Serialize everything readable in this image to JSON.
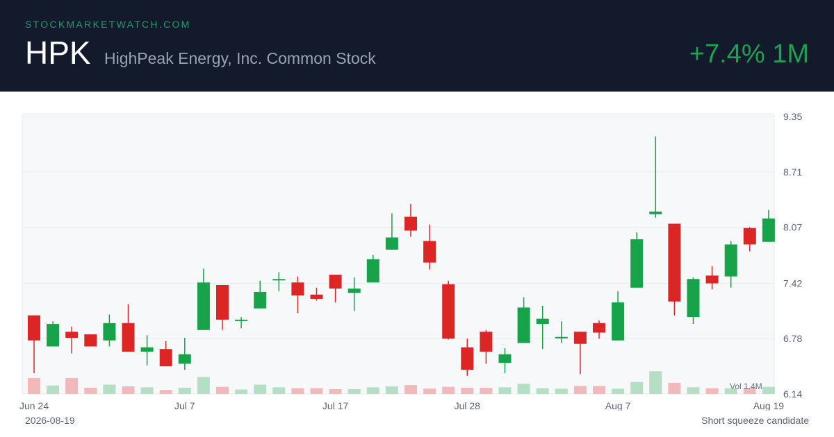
{
  "header": {
    "site": "STOCKMARKETWATCH.COM",
    "ticker": "HPK",
    "company": "HighPeak Energy, Inc. Common Stock",
    "change": "+7.4% 1M"
  },
  "footer": {
    "date": "2026-08-19",
    "note": "Short squeeze candidate"
  },
  "colors": {
    "header_bg": "#131a2b",
    "up": "#16a34a",
    "down": "#dc2626",
    "vol_up": "#b4dfc5",
    "vol_down": "#f1b9b9",
    "change": "#1ea24f"
  },
  "chart_data": {
    "type": "candlestick",
    "y_ticks": [
      "9.35",
      "8.71",
      "8.07",
      "7.42",
      "6.78",
      "6.14"
    ],
    "ylim": [
      6.14,
      9.35
    ],
    "x_tick_labels": [
      {
        "label": "Jun 24",
        "index": 0
      },
      {
        "label": "Jul 7",
        "index": 8
      },
      {
        "label": "Jul 17",
        "index": 16
      },
      {
        "label": "Jul 28",
        "index": 23
      },
      {
        "label": "Aug 7",
        "index": 31
      },
      {
        "label": "Aug 19",
        "index": 39
      }
    ],
    "volume_label": "Vol 1.4M",
    "volume_max": 1.4,
    "candles": [
      {
        "o": 7.05,
        "h": 7.05,
        "l": 6.38,
        "c": 6.76,
        "v": 0.36
      },
      {
        "o": 6.69,
        "h": 6.98,
        "l": 6.69,
        "c": 6.95,
        "v": 0.19
      },
      {
        "o": 6.86,
        "h": 6.92,
        "l": 6.61,
        "c": 6.79,
        "v": 0.36
      },
      {
        "o": 6.83,
        "h": 6.83,
        "l": 6.69,
        "c": 6.69,
        "v": 0.14
      },
      {
        "o": 6.76,
        "h": 7.06,
        "l": 6.69,
        "c": 6.96,
        "v": 0.21
      },
      {
        "o": 6.96,
        "h": 7.18,
        "l": 6.63,
        "c": 6.63,
        "v": 0.17
      },
      {
        "o": 6.63,
        "h": 6.82,
        "l": 6.47,
        "c": 6.68,
        "v": 0.15
      },
      {
        "o": 6.66,
        "h": 6.75,
        "l": 6.46,
        "c": 6.46,
        "v": 0.09
      },
      {
        "o": 6.49,
        "h": 6.79,
        "l": 6.42,
        "c": 6.6,
        "v": 0.14
      },
      {
        "o": 6.88,
        "h": 7.59,
        "l": 6.88,
        "c": 7.43,
        "v": 0.38
      },
      {
        "o": 7.4,
        "h": 7.4,
        "l": 6.88,
        "c": 7.0,
        "v": 0.16
      },
      {
        "o": 7.0,
        "h": 7.03,
        "l": 6.9,
        "c": 7.0,
        "v": 0.1
      },
      {
        "o": 7.13,
        "h": 7.45,
        "l": 7.13,
        "c": 7.32,
        "v": 0.21
      },
      {
        "o": 7.47,
        "h": 7.55,
        "l": 7.33,
        "c": 7.47,
        "v": 0.15
      },
      {
        "o": 7.43,
        "h": 7.5,
        "l": 7.08,
        "c": 7.28,
        "v": 0.13
      },
      {
        "o": 7.29,
        "h": 7.37,
        "l": 7.22,
        "c": 7.24,
        "v": 0.13
      },
      {
        "o": 7.52,
        "h": 7.52,
        "l": 7.2,
        "c": 7.36,
        "v": 0.11
      },
      {
        "o": 7.31,
        "h": 7.49,
        "l": 7.1,
        "c": 7.36,
        "v": 0.11
      },
      {
        "o": 7.43,
        "h": 7.75,
        "l": 7.43,
        "c": 7.7,
        "v": 0.15
      },
      {
        "o": 7.81,
        "h": 8.23,
        "l": 7.81,
        "c": 7.95,
        "v": 0.17
      },
      {
        "o": 8.19,
        "h": 8.34,
        "l": 7.96,
        "c": 8.03,
        "v": 0.2
      },
      {
        "o": 7.91,
        "h": 8.1,
        "l": 7.58,
        "c": 7.66,
        "v": 0.12
      },
      {
        "o": 7.41,
        "h": 7.45,
        "l": 6.77,
        "c": 6.78,
        "v": 0.16
      },
      {
        "o": 6.68,
        "h": 6.78,
        "l": 6.35,
        "c": 6.42,
        "v": 0.14
      },
      {
        "o": 6.86,
        "h": 6.88,
        "l": 6.49,
        "c": 6.63,
        "v": 0.14
      },
      {
        "o": 6.5,
        "h": 6.67,
        "l": 6.38,
        "c": 6.6,
        "v": 0.15
      },
      {
        "o": 6.73,
        "h": 7.26,
        "l": 6.73,
        "c": 7.14,
        "v": 0.23
      },
      {
        "o": 6.95,
        "h": 7.16,
        "l": 6.66,
        "c": 7.01,
        "v": 0.13
      },
      {
        "o": 6.8,
        "h": 6.98,
        "l": 6.73,
        "c": 6.8,
        "v": 0.12
      },
      {
        "o": 6.86,
        "h": 6.86,
        "l": 6.37,
        "c": 6.72,
        "v": 0.18
      },
      {
        "o": 6.96,
        "h": 6.99,
        "l": 6.78,
        "c": 6.85,
        "v": 0.18
      },
      {
        "o": 6.76,
        "h": 7.33,
        "l": 6.76,
        "c": 7.2,
        "v": 0.12
      },
      {
        "o": 7.37,
        "h": 8.01,
        "l": 7.37,
        "c": 7.93,
        "v": 0.27
      },
      {
        "o": 8.22,
        "h": 9.12,
        "l": 8.18,
        "c": 8.25,
        "v": 0.51
      },
      {
        "o": 8.11,
        "h": 8.11,
        "l": 7.05,
        "c": 7.21,
        "v": 0.25
      },
      {
        "o": 7.03,
        "h": 7.49,
        "l": 6.95,
        "c": 7.47,
        "v": 0.15
      },
      {
        "o": 7.51,
        "h": 7.62,
        "l": 7.35,
        "c": 7.42,
        "v": 0.13
      },
      {
        "o": 7.5,
        "h": 7.91,
        "l": 7.37,
        "c": 7.87,
        "v": 0.13
      },
      {
        "o": 8.06,
        "h": 8.07,
        "l": 7.79,
        "c": 7.87,
        "v": 0.14
      },
      {
        "o": 7.9,
        "h": 8.27,
        "l": 7.9,
        "c": 8.17,
        "v": 0.16
      }
    ]
  }
}
